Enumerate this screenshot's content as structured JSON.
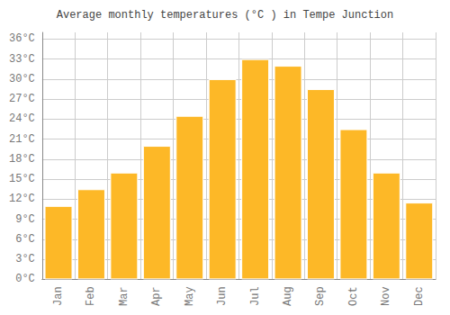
{
  "chart_data": {
    "type": "bar",
    "title": "Average monthly temperatures (°C ) in Tempe Junction",
    "categories": [
      "Jan",
      "Feb",
      "Mar",
      "Apr",
      "May",
      "Jun",
      "Jul",
      "Aug",
      "Sep",
      "Oct",
      "Nov",
      "Dec"
    ],
    "values": [
      11,
      13.5,
      16,
      20,
      24.5,
      30,
      33,
      32,
      28.5,
      22.5,
      16,
      11.5
    ],
    "color": "#FDB827",
    "ylim": [
      0,
      37
    ],
    "yticks": [
      {
        "value": 0,
        "label": "0°C"
      },
      {
        "value": 3,
        "label": "3°C"
      },
      {
        "value": 6,
        "label": "6°C"
      },
      {
        "value": 9,
        "label": "9°C"
      },
      {
        "value": 12,
        "label": "12°C"
      },
      {
        "value": 15,
        "label": "15°C"
      },
      {
        "value": 18,
        "label": "18°C"
      },
      {
        "value": 21,
        "label": "21°C"
      },
      {
        "value": 24,
        "label": "24°C"
      },
      {
        "value": 27,
        "label": "27°C"
      },
      {
        "value": 30,
        "label": "30°C"
      },
      {
        "value": 33,
        "label": "33°C"
      },
      {
        "value": 36,
        "label": "36°C"
      }
    ],
    "grid": true
  }
}
